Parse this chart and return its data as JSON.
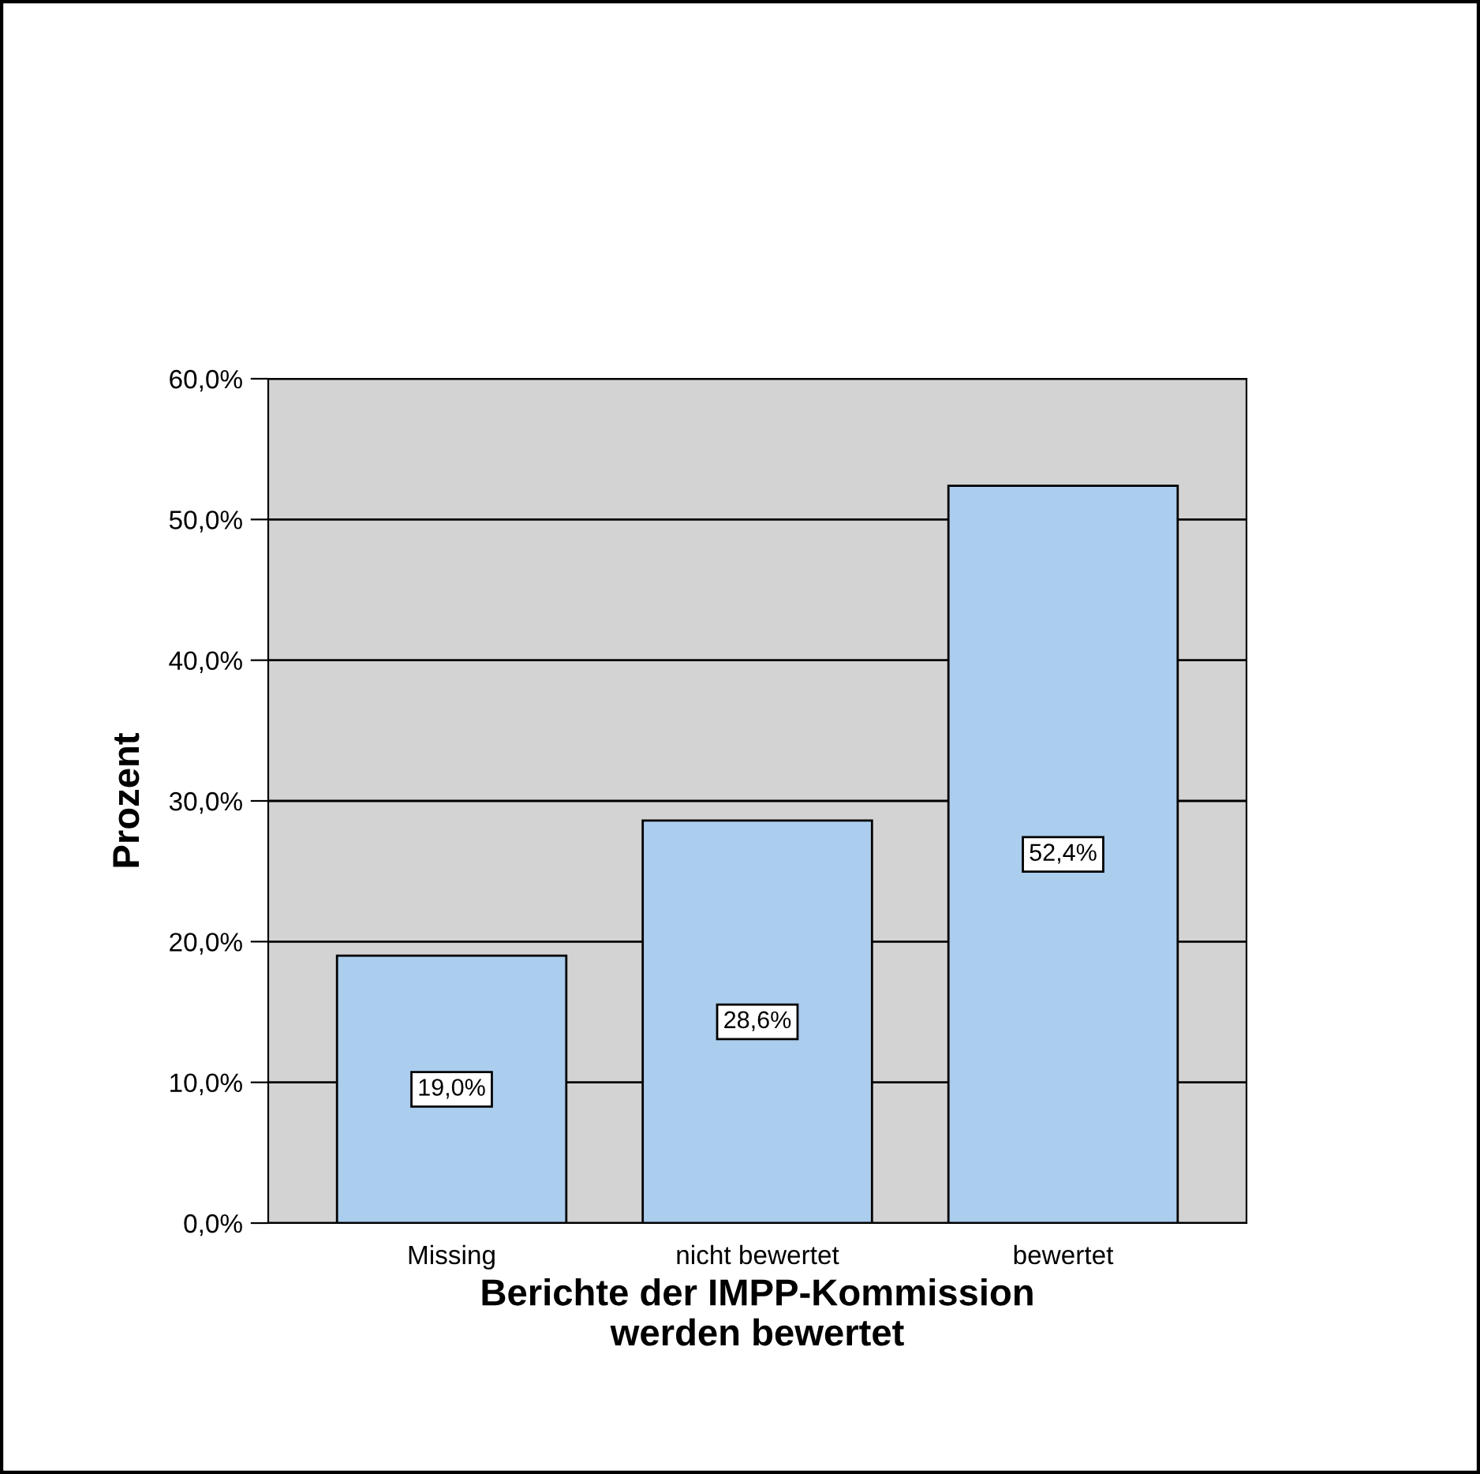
{
  "chart_data": {
    "type": "bar",
    "xlabel": "Berichte der IMPP-Kommission\nwerden bewertet",
    "ylabel": "Prozent",
    "categories": [
      "Missing",
      "nicht bewertet",
      "bewertet"
    ],
    "values": [
      19.0,
      28.6,
      52.4
    ],
    "value_labels": [
      "19,0%",
      "28,6%",
      "52,4%"
    ],
    "color": "#abcdee",
    "ylim": [
      0,
      60
    ],
    "yticks": [
      {
        "value": 0,
        "label": "0,0%"
      },
      {
        "value": 10,
        "label": "10,0%"
      },
      {
        "value": 20,
        "label": "20,0%"
      },
      {
        "value": 30,
        "label": "30,0%"
      },
      {
        "value": 40,
        "label": "40,0%"
      },
      {
        "value": 50,
        "label": "50,0%"
      },
      {
        "value": 60,
        "label": "60,0%"
      }
    ],
    "grid": "y"
  }
}
